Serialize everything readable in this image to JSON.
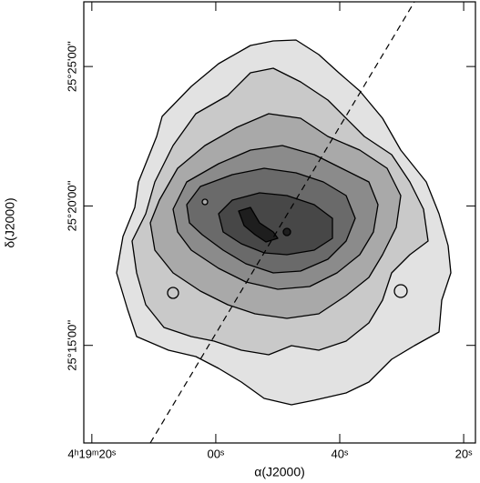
{
  "chart_data": {
    "type": "contour",
    "x_label": "α(J2000)",
    "y_label": "δ(J2000)",
    "xlim": [
      21.3,
      -41.9
    ],
    "xticks": [
      {
        "value": 20,
        "label": "4ʰ19ᵐ20ˢ"
      },
      {
        "value": 0,
        "label": "00ˢ"
      },
      {
        "value": -20,
        "label": "40ˢ"
      },
      {
        "value": -40,
        "label": "20ˢ"
      }
    ],
    "ylim": [
      11.5,
      27.32
    ],
    "yticks": [
      {
        "value": 15,
        "label": "25°15'00''"
      },
      {
        "value": 20,
        "label": "25°20'00''"
      },
      {
        "value": 25,
        "label": "25°25'00''"
      }
    ]
  }
}
